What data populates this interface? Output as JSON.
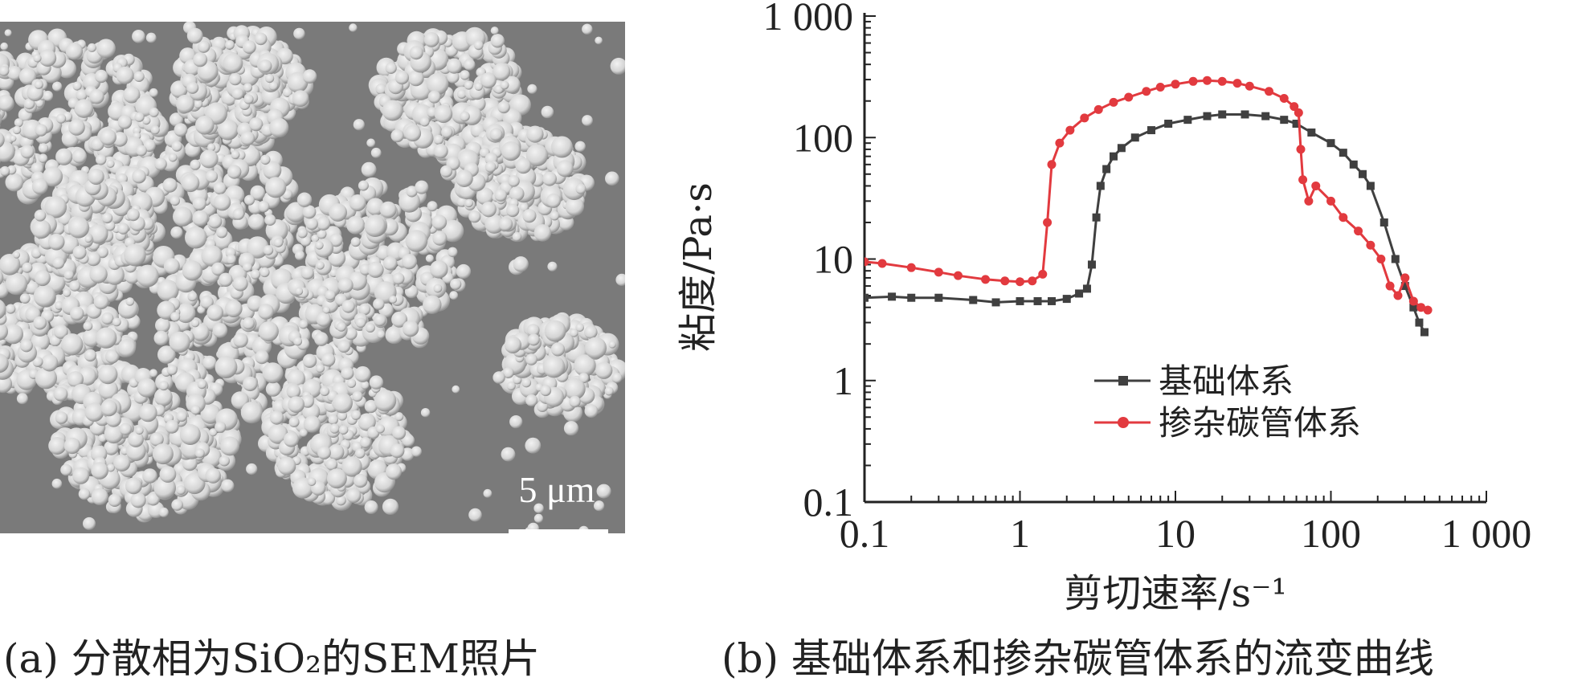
{
  "panel_a": {
    "scale_bar_label": "5 μm",
    "caption": "(a) 分散相为SiO₂的SEM照片"
  },
  "panel_b": {
    "caption": "(b) 基础体系和掺杂碳管体系的流变曲线"
  },
  "colors": {
    "series_base": "#404040",
    "series_doped": "#e23a3f",
    "sem_background": "#7a7a7a",
    "sem_particle": "#d4d4d4"
  },
  "chart_data": {
    "type": "line",
    "xlabel": "剪切速率/s⁻¹",
    "ylabel": "粘度/Pa·s",
    "x_scale": "log",
    "y_scale": "log",
    "xlim": [
      0.1,
      1000
    ],
    "ylim": [
      0.1,
      1000
    ],
    "x_ticks": [
      0.1,
      1,
      10,
      100,
      1000
    ],
    "x_tick_labels": [
      "0.1",
      "1",
      "10",
      "100",
      "1 000"
    ],
    "y_ticks": [
      0.1,
      1,
      10,
      100,
      1000
    ],
    "y_tick_labels": [
      "0.1",
      "1",
      "10",
      "100",
      "1 000"
    ],
    "grid": false,
    "legend_position": "center",
    "series": [
      {
        "name": "基础体系",
        "marker": "square",
        "color": "#404040",
        "points": [
          [
            0.1,
            4.8
          ],
          [
            0.15,
            4.9
          ],
          [
            0.2,
            4.8
          ],
          [
            0.3,
            4.8
          ],
          [
            0.5,
            4.6
          ],
          [
            0.7,
            4.4
          ],
          [
            1.0,
            4.5
          ],
          [
            1.3,
            4.5
          ],
          [
            1.6,
            4.5
          ],
          [
            2.0,
            4.7
          ],
          [
            2.4,
            5.2
          ],
          [
            2.7,
            5.7
          ],
          [
            2.9,
            9
          ],
          [
            3.1,
            22
          ],
          [
            3.3,
            40
          ],
          [
            3.6,
            55
          ],
          [
            4.0,
            70
          ],
          [
            4.5,
            82
          ],
          [
            5.5,
            100
          ],
          [
            7,
            115
          ],
          [
            9,
            130
          ],
          [
            12,
            140
          ],
          [
            16,
            150
          ],
          [
            20,
            155
          ],
          [
            28,
            155
          ],
          [
            38,
            150
          ],
          [
            50,
            140
          ],
          [
            60,
            130
          ],
          [
            75,
            110
          ],
          [
            100,
            90
          ],
          [
            120,
            75
          ],
          [
            140,
            60
          ],
          [
            160,
            50
          ],
          [
            180,
            40
          ],
          [
            220,
            20
          ],
          [
            260,
            10
          ],
          [
            300,
            6
          ],
          [
            340,
            4
          ],
          [
            370,
            3
          ],
          [
            400,
            2.5
          ]
        ]
      },
      {
        "name": "掺杂碳管体系",
        "marker": "circle",
        "color": "#e23a3f",
        "points": [
          [
            0.1,
            9.5
          ],
          [
            0.13,
            9.2
          ],
          [
            0.2,
            8.5
          ],
          [
            0.3,
            7.8
          ],
          [
            0.4,
            7.3
          ],
          [
            0.6,
            6.8
          ],
          [
            0.8,
            6.6
          ],
          [
            1.0,
            6.5
          ],
          [
            1.2,
            6.6
          ],
          [
            1.4,
            7.5
          ],
          [
            1.5,
            20
          ],
          [
            1.6,
            60
          ],
          [
            1.8,
            90
          ],
          [
            2.1,
            115
          ],
          [
            2.6,
            145
          ],
          [
            3.2,
            170
          ],
          [
            4,
            195
          ],
          [
            5,
            215
          ],
          [
            6.5,
            240
          ],
          [
            8,
            260
          ],
          [
            10,
            275
          ],
          [
            13,
            290
          ],
          [
            16,
            295
          ],
          [
            20,
            290
          ],
          [
            25,
            280
          ],
          [
            30,
            265
          ],
          [
            40,
            240
          ],
          [
            50,
            210
          ],
          [
            58,
            180
          ],
          [
            62,
            160
          ],
          [
            64,
            80
          ],
          [
            66,
            45
          ],
          [
            72,
            30
          ],
          [
            80,
            40
          ],
          [
            100,
            30
          ],
          [
            120,
            22
          ],
          [
            150,
            17
          ],
          [
            180,
            13
          ],
          [
            210,
            10
          ],
          [
            240,
            6
          ],
          [
            270,
            5
          ],
          [
            300,
            7
          ],
          [
            340,
            4.5
          ],
          [
            380,
            4
          ],
          [
            420,
            3.8
          ]
        ]
      }
    ]
  }
}
